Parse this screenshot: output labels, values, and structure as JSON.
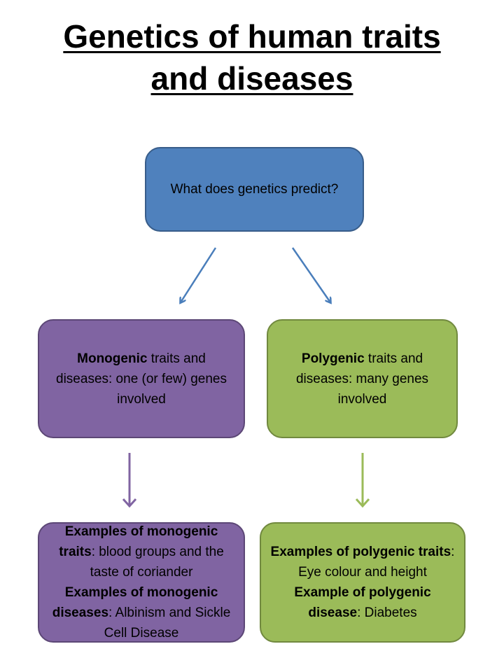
{
  "title": {
    "line1": "Genetics of human traits",
    "line2": "and diseases"
  },
  "root": {
    "text": "What does genetics predict?"
  },
  "monogenic": {
    "bold": "Monogenic",
    "rest": " traits and diseases: one (or few) genes involved"
  },
  "polygenic": {
    "bold": "Polygenic",
    "rest": " traits and diseases: many genes involved"
  },
  "monogenic_examples": {
    "traits_bold": "Examples of monogenic traits",
    "traits_rest": ": blood groups and the taste of coriander",
    "diseases_bold": "Examples of monogenic diseases",
    "diseases_rest": ": Albinism and Sickle Cell Disease"
  },
  "polygenic_examples": {
    "traits_bold": "Examples of polygenic traits",
    "traits_rest": ": Eye colour and height",
    "disease_bold": "Example of polygenic disease",
    "disease_rest": ": Diabetes"
  },
  "colors": {
    "root": "#4f81bd",
    "monogenic": "#8064a2",
    "polygenic": "#9bbb59"
  }
}
